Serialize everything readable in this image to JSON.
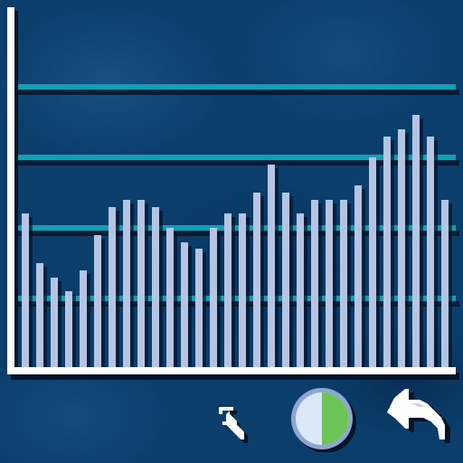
{
  "chart_data": {
    "type": "bar",
    "values": [
      22,
      15,
      13,
      11,
      14,
      19,
      23,
      24,
      24,
      23,
      20,
      18,
      17,
      20,
      22,
      22,
      25,
      29,
      25,
      22,
      24,
      24,
      24,
      26,
      30,
      33,
      34,
      36,
      33,
      24
    ],
    "ylim": [
      0,
      50
    ],
    "grid": true,
    "gridlines": [
      10,
      20,
      30,
      40
    ]
  },
  "colors": {
    "bar": "#b4c4e2",
    "gridline": "#0fa0b4",
    "axis": "#ffffff",
    "pie_filled": "#6cc456",
    "pie_empty": "#dce8f8"
  },
  "pie_button": {
    "icon": "pie-chart-icon",
    "filled_fraction": 0.5
  },
  "toolbar": {
    "pointer_icon": "arrow-pointer-icon",
    "back_icon": "back-arrow-icon"
  }
}
